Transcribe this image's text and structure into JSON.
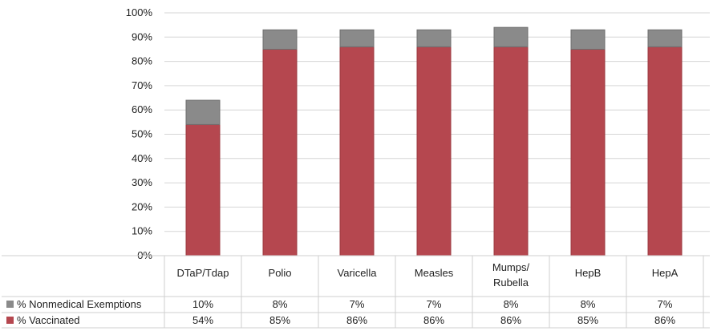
{
  "chart_data": {
    "type": "bar",
    "stacked": true,
    "categories": [
      "DTaP/Tdap",
      "Polio",
      "Varicella",
      "Measles",
      "Mumps/ Rubella",
      "HepB",
      "HepA"
    ],
    "series": [
      {
        "name": "% Vaccinated",
        "values": [
          54,
          85,
          86,
          86,
          86,
          85,
          86
        ],
        "labels": [
          "54%",
          "85%",
          "86%",
          "86%",
          "86%",
          "85%",
          "86%"
        ],
        "color": "#b5474f"
      },
      {
        "name": "% Nonmedical Exemptions",
        "values": [
          10,
          8,
          7,
          7,
          8,
          8,
          7
        ],
        "labels": [
          "10%",
          "8%",
          "7%",
          "7%",
          "8%",
          "8%",
          "7%"
        ],
        "color": "#8a8a8a"
      }
    ],
    "ylim": [
      0,
      100
    ],
    "yticks": [
      "0%",
      "10%",
      "20%",
      "30%",
      "40%",
      "50%",
      "60%",
      "70%",
      "80%",
      "90%",
      "100%"
    ],
    "grid": true,
    "legend": "data-table-left",
    "title": "",
    "xlabel": "",
    "ylabel": ""
  }
}
